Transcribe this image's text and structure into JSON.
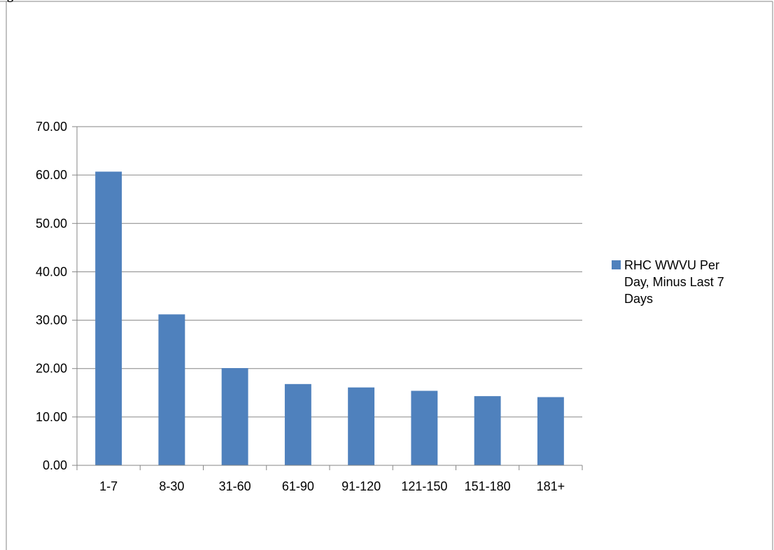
{
  "page": {
    "top_fragment_text": "g"
  },
  "colors": {
    "bar": "#4f81bd",
    "gridline": "#868686",
    "axis": "#868686",
    "frame": "#868686",
    "text": "#000000"
  },
  "chart_data": {
    "type": "bar",
    "title": "",
    "xlabel": "",
    "ylabel": "",
    "categories": [
      "1-7",
      "8-30",
      "31-60",
      "61-90",
      "91-120",
      "121-150",
      "151-180",
      "181+"
    ],
    "series": [
      {
        "name": "RHC WWVU Per Day, Minus Last 7 Days",
        "legend_lines": [
          "RHC WWVU Per",
          "Day, Minus Last 7",
          "Days"
        ],
        "values": [
          60.7,
          31.2,
          20.1,
          16.8,
          16.1,
          15.4,
          14.3,
          14.1
        ]
      }
    ],
    "ylim": [
      0,
      70
    ],
    "yticks": [
      0,
      10,
      20,
      30,
      40,
      50,
      60,
      70
    ],
    "ytick_labels": [
      "0.00",
      "10.00",
      "20.00",
      "30.00",
      "40.00",
      "50.00",
      "60.00",
      "70.00"
    ],
    "grid": true,
    "legend": "right"
  }
}
